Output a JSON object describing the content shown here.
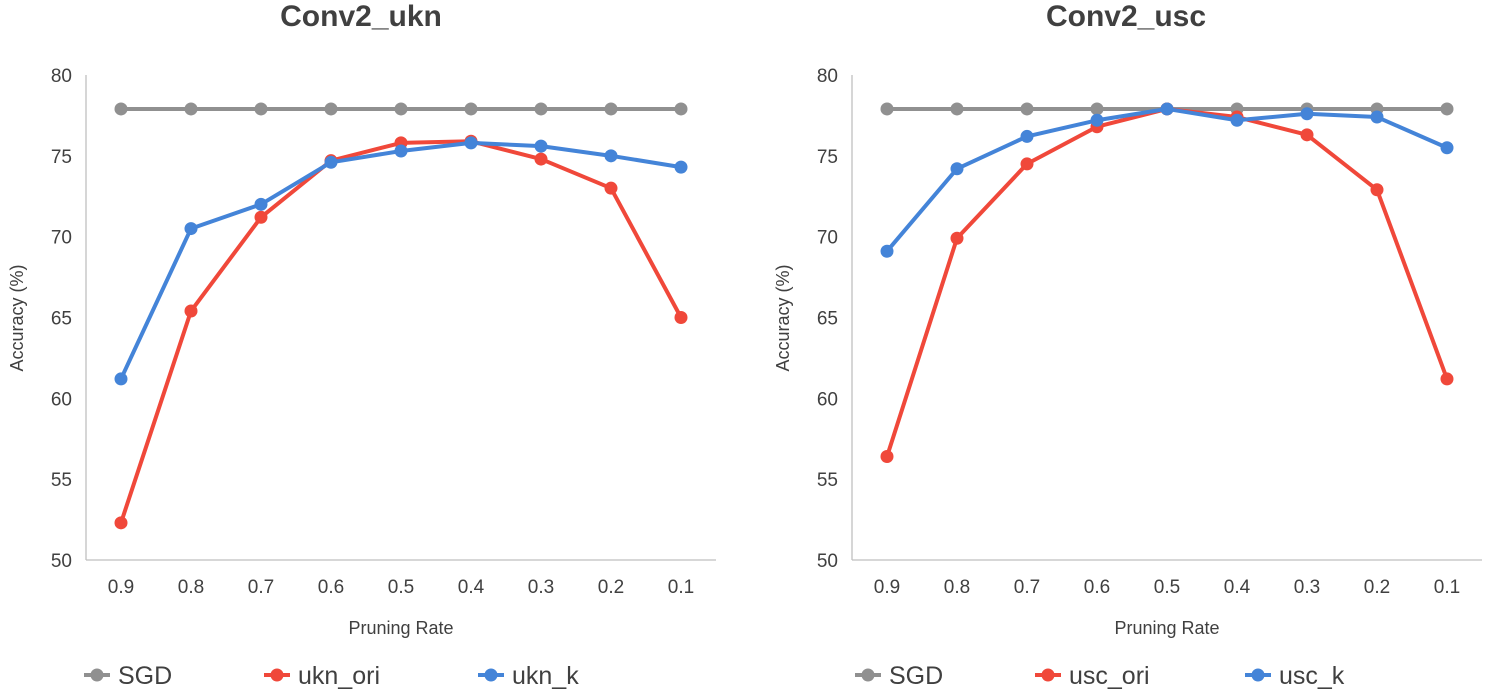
{
  "chart_data": [
    {
      "type": "line",
      "title": "Conv2_ukn",
      "xlabel": "Pruning Rate",
      "ylabel": "Accuracy (%)",
      "ylim": [
        50,
        80
      ],
      "yticks": [
        "50",
        "55",
        "60",
        "65",
        "70",
        "75",
        "80"
      ],
      "categories": [
        "0.9",
        "0.8",
        "0.7",
        "0.6",
        "0.5",
        "0.4",
        "0.3",
        "0.2",
        "0.1"
      ],
      "grid": false,
      "legend_position": "bottom",
      "series": [
        {
          "name": "SGD",
          "color": "#909090",
          "values": [
            77.9,
            77.9,
            77.9,
            77.9,
            77.9,
            77.9,
            77.9,
            77.9,
            77.9
          ]
        },
        {
          "name": "ukn_ori",
          "color": "#f0483a",
          "values": [
            52.3,
            65.4,
            71.2,
            74.7,
            75.8,
            75.9,
            74.8,
            73.0,
            65.0
          ]
        },
        {
          "name": "ukn_k",
          "color": "#4484d8",
          "values": [
            61.2,
            70.5,
            72.0,
            74.6,
            75.3,
            75.8,
            75.6,
            75.0,
            74.3
          ]
        }
      ]
    },
    {
      "type": "line",
      "title": "Conv2_usc",
      "xlabel": "Pruning Rate",
      "ylabel": "Accuracy (%)",
      "ylim": [
        50,
        80
      ],
      "yticks": [
        "50",
        "55",
        "60",
        "65",
        "70",
        "75",
        "80"
      ],
      "categories": [
        "0.9",
        "0.8",
        "0.7",
        "0.6",
        "0.5",
        "0.4",
        "0.3",
        "0.2",
        "0.1"
      ],
      "grid": false,
      "legend_position": "bottom",
      "series": [
        {
          "name": "SGD",
          "color": "#909090",
          "values": [
            77.9,
            77.9,
            77.9,
            77.9,
            77.9,
            77.9,
            77.9,
            77.9,
            77.9
          ]
        },
        {
          "name": "usc_ori",
          "color": "#f0483a",
          "values": [
            56.4,
            69.9,
            74.5,
            76.8,
            77.9,
            77.4,
            76.3,
            72.9,
            61.2
          ]
        },
        {
          "name": "usc_k",
          "color": "#4484d8",
          "values": [
            69.1,
            74.2,
            76.2,
            77.2,
            77.9,
            77.2,
            77.6,
            77.4,
            75.5
          ]
        }
      ]
    }
  ]
}
